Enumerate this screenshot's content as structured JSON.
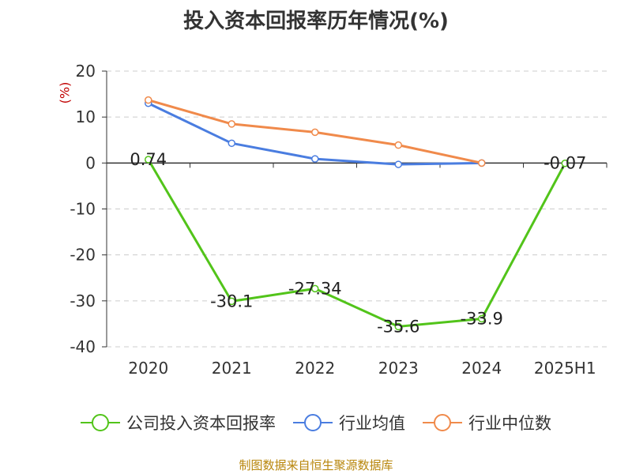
{
  "title": "投入资本回报率历年情况(%)",
  "source": "制图数据来自恒生聚源数据库",
  "colors": {
    "company": "#52c41a",
    "industry_avg": "#4a7de0",
    "industry_median": "#f08a4b",
    "label": "#c00000"
  },
  "chart_data": {
    "type": "line",
    "title": "投入资本回报率历年情况(%)",
    "xlabel": "",
    "ylabel": "(%)",
    "categories": [
      "2020",
      "2021",
      "2022",
      "2023",
      "2024",
      "2025H1"
    ],
    "ylim": [
      -40,
      20
    ],
    "yticks": [
      "20",
      "10",
      "0",
      "-10",
      "-20",
      "-30",
      "-40"
    ],
    "grid": true,
    "legend_position": "bottom",
    "series": [
      {
        "name": "公司投入资本回报率",
        "values": [
          0.74,
          -30.1,
          -27.34,
          -35.6,
          -33.9,
          -0.07
        ],
        "labels": [
          "0.74",
          "-30.1",
          "-27.34",
          "-35.6",
          "-33.9",
          "-0.07"
        ]
      },
      {
        "name": "行业均值",
        "values": [
          13,
          4.3,
          0.9,
          -0.3,
          0.0,
          null
        ]
      },
      {
        "name": "行业中位数",
        "values": [
          13.7,
          8.5,
          6.7,
          3.9,
          0.0,
          null
        ]
      }
    ]
  }
}
